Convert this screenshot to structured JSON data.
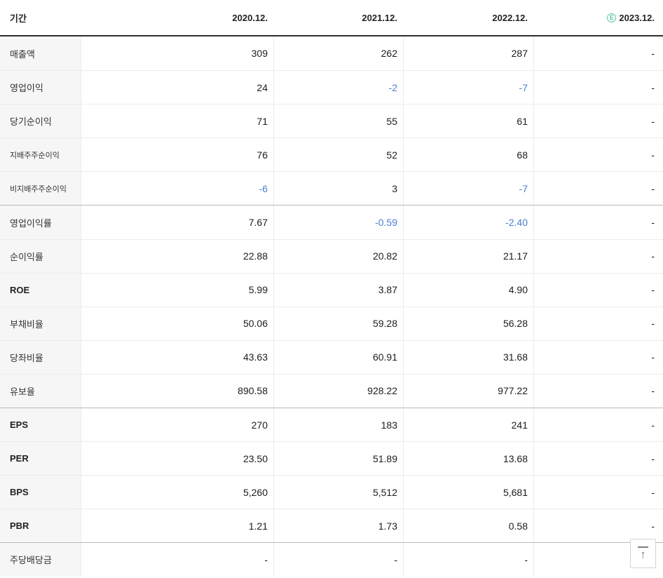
{
  "table": {
    "header": {
      "period_label": "기간",
      "columns": [
        {
          "label": "2020.12.",
          "estimate": false
        },
        {
          "label": "2021.12.",
          "estimate": false
        },
        {
          "label": "2022.12.",
          "estimate": false
        },
        {
          "label": "2023.12.",
          "estimate": true
        }
      ],
      "estimate_icon": "circled-E-icon",
      "estimate_color": "#56c6a4"
    },
    "rows": [
      {
        "label": "매출액",
        "values": [
          "309",
          "262",
          "287",
          "-"
        ],
        "group_start": false
      },
      {
        "label": "영업이익",
        "values": [
          "24",
          "-2",
          "-7",
          "-"
        ],
        "group_start": false
      },
      {
        "label": "당기순이익",
        "values": [
          "71",
          "55",
          "61",
          "-"
        ],
        "group_start": false
      },
      {
        "label": "지배주주순이익",
        "values": [
          "76",
          "52",
          "68",
          "-"
        ],
        "group_start": false
      },
      {
        "label": "비지배주주순이익",
        "values": [
          "-6",
          "3",
          "-7",
          "-"
        ],
        "group_start": false
      },
      {
        "label": "영업이익률",
        "values": [
          "7.67",
          "-0.59",
          "-2.40",
          "-"
        ],
        "group_start": true
      },
      {
        "label": "순이익률",
        "values": [
          "22.88",
          "20.82",
          "21.17",
          "-"
        ],
        "group_start": false
      },
      {
        "label": "ROE",
        "values": [
          "5.99",
          "3.87",
          "4.90",
          "-"
        ],
        "group_start": false
      },
      {
        "label": "부채비율",
        "values": [
          "50.06",
          "59.28",
          "56.28",
          "-"
        ],
        "group_start": false
      },
      {
        "label": "당좌비율",
        "values": [
          "43.63",
          "60.91",
          "31.68",
          "-"
        ],
        "group_start": false
      },
      {
        "label": "유보율",
        "values": [
          "890.58",
          "928.22",
          "977.22",
          "-"
        ],
        "group_start": false
      },
      {
        "label": "EPS",
        "values": [
          "270",
          "183",
          "241",
          "-"
        ],
        "group_start": true
      },
      {
        "label": "PER",
        "values": [
          "23.50",
          "51.89",
          "13.68",
          "-"
        ],
        "group_start": false
      },
      {
        "label": "BPS",
        "values": [
          "5,260",
          "5,512",
          "5,681",
          "-"
        ],
        "group_start": false
      },
      {
        "label": "PBR",
        "values": [
          "1.21",
          "1.73",
          "0.58",
          "-"
        ],
        "group_start": false
      }
    ],
    "last_row": {
      "label": "주당배당금",
      "values": [
        "-",
        "-",
        "-",
        "-"
      ],
      "group_start": true
    },
    "colors": {
      "negative_value": "#4a7ed1",
      "label_column_bg": "#f6f6f6",
      "header_border": "#2e2e2e",
      "group_border": "#b9b9b9"
    }
  },
  "scroll_top_button": {
    "icon": "arrow-up-to-top-icon"
  }
}
